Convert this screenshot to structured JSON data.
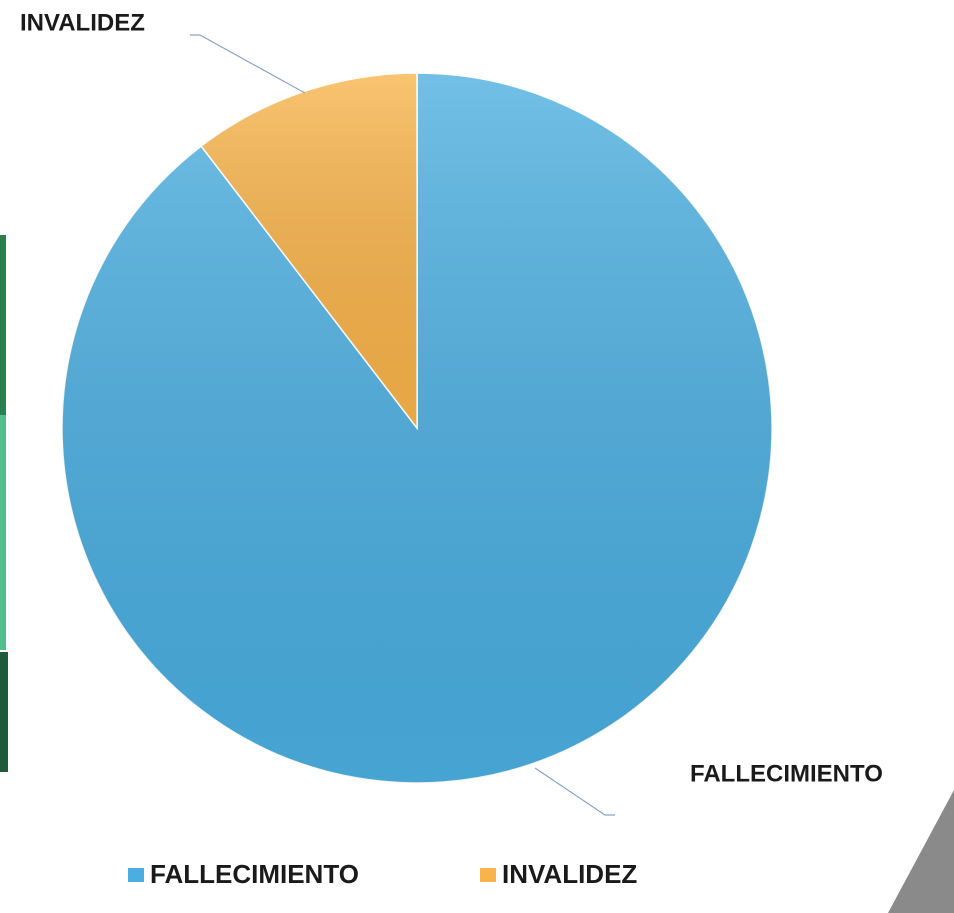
{
  "chart_data": {
    "type": "pie",
    "categories": [
      "FALLECIMIENTO",
      "INVALIDEZ"
    ],
    "values": [
      89.6,
      10.4
    ],
    "colors": [
      "#4aaee0",
      "#f8b34a"
    ],
    "legend": "bottom"
  }
}
